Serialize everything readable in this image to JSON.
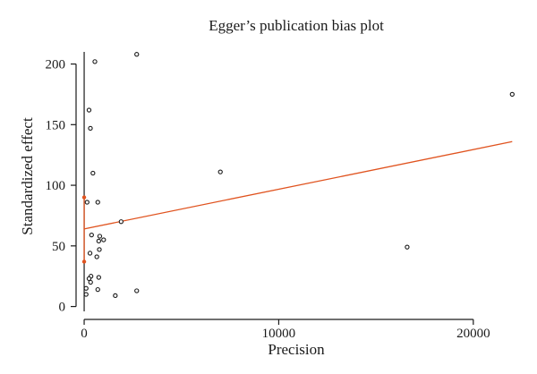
{
  "chart_data": {
    "type": "scatter",
    "title": "Egger’s publication bias plot",
    "xlabel": "Precision",
    "ylabel": "Standardized effect",
    "xlim": [
      -600,
      22400
    ],
    "ylim": [
      -4,
      210
    ],
    "xticks": [
      0,
      10000,
      20000
    ],
    "yticks": [
      0,
      50,
      100,
      150,
      200
    ],
    "grid": false,
    "points": [
      {
        "x": 550,
        "y": 202
      },
      {
        "x": 2700,
        "y": 208
      },
      {
        "x": 250,
        "y": 162
      },
      {
        "x": 320,
        "y": 147
      },
      {
        "x": 450,
        "y": 110
      },
      {
        "x": 7000,
        "y": 111
      },
      {
        "x": 22000,
        "y": 175
      },
      {
        "x": 150,
        "y": 86
      },
      {
        "x": 700,
        "y": 86
      },
      {
        "x": 1900,
        "y": 70
      },
      {
        "x": 380,
        "y": 59
      },
      {
        "x": 800,
        "y": 58
      },
      {
        "x": 750,
        "y": 54
      },
      {
        "x": 1000,
        "y": 55
      },
      {
        "x": 780,
        "y": 47
      },
      {
        "x": 300,
        "y": 44
      },
      {
        "x": 650,
        "y": 41
      },
      {
        "x": 16600,
        "y": 49
      },
      {
        "x": 350,
        "y": 25
      },
      {
        "x": 250,
        "y": 23
      },
      {
        "x": 750,
        "y": 24
      },
      {
        "x": 330,
        "y": 20
      },
      {
        "x": 100,
        "y": 15
      },
      {
        "x": 700,
        "y": 14
      },
      {
        "x": 2700,
        "y": 13
      },
      {
        "x": 100,
        "y": 10
      },
      {
        "x": 1600,
        "y": 9
      }
    ],
    "regression_line": {
      "x": [
        0,
        22000
      ],
      "y": [
        64,
        136
      ],
      "color": "#e0531f"
    },
    "intercept_interval": {
      "x": 0,
      "y": [
        37,
        90
      ],
      "color": "#e0531f"
    },
    "colors": {
      "points": "#1a1a1a",
      "line": "#e0531f"
    }
  }
}
